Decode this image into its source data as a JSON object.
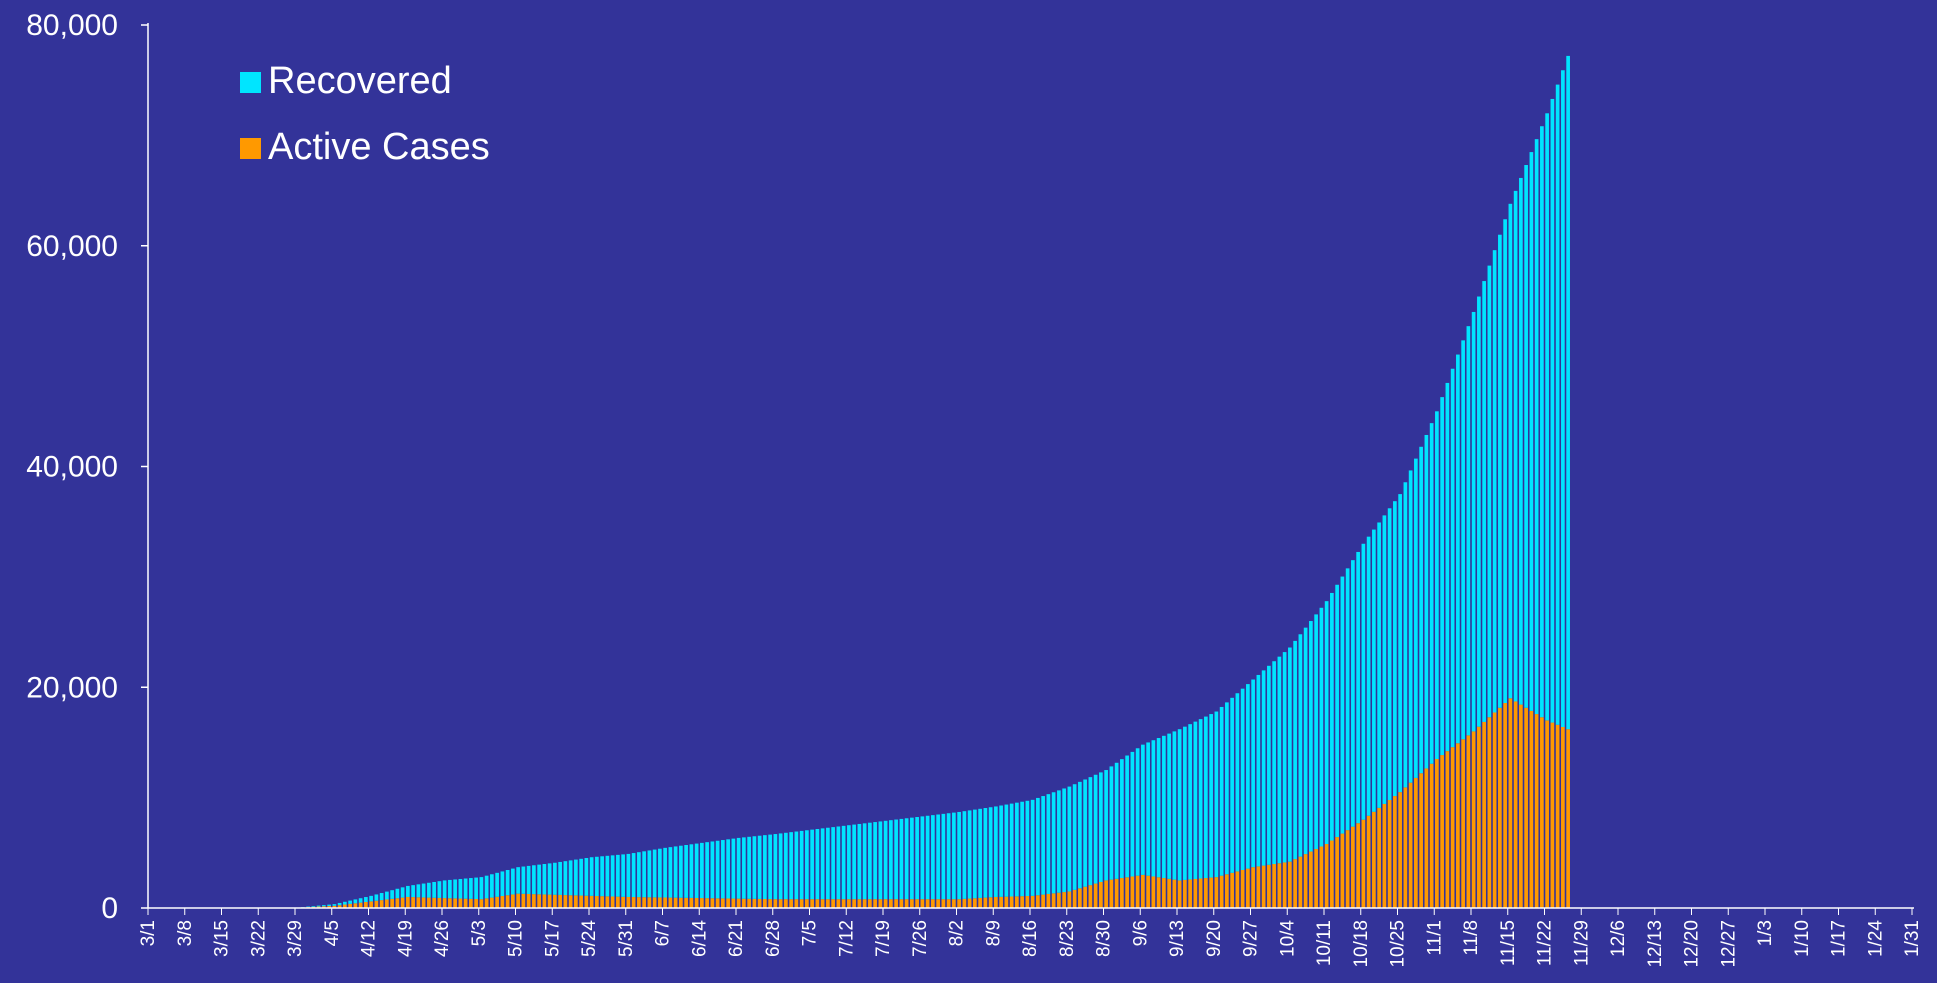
{
  "chart_data": {
    "type": "bar",
    "stacked": true,
    "background": "#333399",
    "axis_color": "#ffffff",
    "ylim": [
      0,
      80000
    ],
    "y_ticks": [
      0,
      20000,
      40000,
      60000,
      80000
    ],
    "y_tick_labels": [
      "0",
      "20,000",
      "40,000",
      "60,000",
      "80,000"
    ],
    "x_range": [
      "2020-03-01",
      "2021-01-31"
    ],
    "x_tick_labels": [
      "3/1",
      "3/8",
      "3/15",
      "3/22",
      "3/29",
      "4/5",
      "4/12",
      "4/19",
      "4/26",
      "5/3",
      "5/10",
      "5/17",
      "5/24",
      "5/31",
      "6/7",
      "6/14",
      "6/21",
      "6/28",
      "7/5",
      "7/12",
      "7/19",
      "7/26",
      "8/2",
      "8/9",
      "8/16",
      "8/23",
      "8/30",
      "9/6",
      "9/13",
      "9/20",
      "9/27",
      "10/4",
      "10/11",
      "10/18",
      "10/25",
      "11/1",
      "11/8",
      "11/15",
      "11/22",
      "11/29",
      "12/6",
      "12/13",
      "12/20",
      "12/27",
      "1/3",
      "1/10",
      "1/17",
      "1/24",
      "1/31"
    ],
    "legend_position": "top-left",
    "series": [
      {
        "name": "Recovered",
        "color": "#00E5FF",
        "stack_position": "top",
        "points": [
          [
            "2020-03-29",
            0
          ],
          [
            "2020-04-05",
            150
          ],
          [
            "2020-04-12",
            500
          ],
          [
            "2020-04-19",
            1000
          ],
          [
            "2020-04-26",
            1600
          ],
          [
            "2020-05-03",
            2000
          ],
          [
            "2020-05-10",
            2400
          ],
          [
            "2020-05-17",
            2900
          ],
          [
            "2020-05-24",
            3500
          ],
          [
            "2020-05-31",
            3900
          ],
          [
            "2020-06-07",
            4500
          ],
          [
            "2020-06-14",
            5000
          ],
          [
            "2020-06-21",
            5500
          ],
          [
            "2020-06-28",
            5900
          ],
          [
            "2020-07-05",
            6300
          ],
          [
            "2020-07-12",
            6700
          ],
          [
            "2020-07-19",
            7100
          ],
          [
            "2020-07-26",
            7500
          ],
          [
            "2020-08-02",
            7900
          ],
          [
            "2020-08-09",
            8200
          ],
          [
            "2020-08-16",
            8700
          ],
          [
            "2020-08-23",
            9500
          ],
          [
            "2020-08-30",
            10000
          ],
          [
            "2020-09-06",
            11800
          ],
          [
            "2020-09-13",
            13700
          ],
          [
            "2020-09-20",
            15000
          ],
          [
            "2020-09-27",
            17000
          ],
          [
            "2020-10-04",
            19400
          ],
          [
            "2020-10-11",
            22000
          ],
          [
            "2020-10-18",
            25000
          ],
          [
            "2020-10-25",
            27000
          ],
          [
            "2020-11-01",
            31500
          ],
          [
            "2020-11-08",
            38000
          ],
          [
            "2020-11-15",
            44800
          ],
          [
            "2020-11-22",
            55000
          ],
          [
            "2020-11-26",
            61000
          ]
        ]
      },
      {
        "name": "Active Cases",
        "color": "#FF9900",
        "stack_position": "bottom",
        "points": [
          [
            "2020-03-29",
            40
          ],
          [
            "2020-04-05",
            200
          ],
          [
            "2020-04-12",
            600
          ],
          [
            "2020-04-19",
            1000
          ],
          [
            "2020-04-26",
            900
          ],
          [
            "2020-05-03",
            800
          ],
          [
            "2020-05-10",
            1300
          ],
          [
            "2020-05-17",
            1200
          ],
          [
            "2020-05-24",
            1100
          ],
          [
            "2020-05-31",
            1000
          ],
          [
            "2020-06-07",
            950
          ],
          [
            "2020-06-14",
            900
          ],
          [
            "2020-06-21",
            850
          ],
          [
            "2020-06-28",
            800
          ],
          [
            "2020-07-05",
            800
          ],
          [
            "2020-07-12",
            800
          ],
          [
            "2020-07-19",
            800
          ],
          [
            "2020-07-26",
            800
          ],
          [
            "2020-08-02",
            800
          ],
          [
            "2020-08-09",
            1000
          ],
          [
            "2020-08-16",
            1100
          ],
          [
            "2020-08-23",
            1500
          ],
          [
            "2020-08-30",
            2500
          ],
          [
            "2020-09-06",
            3000
          ],
          [
            "2020-09-13",
            2500
          ],
          [
            "2020-09-20",
            2800
          ],
          [
            "2020-09-27",
            3700
          ],
          [
            "2020-10-04",
            4200
          ],
          [
            "2020-10-11",
            5800
          ],
          [
            "2020-10-18",
            8000
          ],
          [
            "2020-10-25",
            10500
          ],
          [
            "2020-11-01",
            13500
          ],
          [
            "2020-11-08",
            16000
          ],
          [
            "2020-11-15",
            19000
          ],
          [
            "2020-11-22",
            17000
          ],
          [
            "2020-11-26",
            16200
          ]
        ]
      }
    ]
  }
}
